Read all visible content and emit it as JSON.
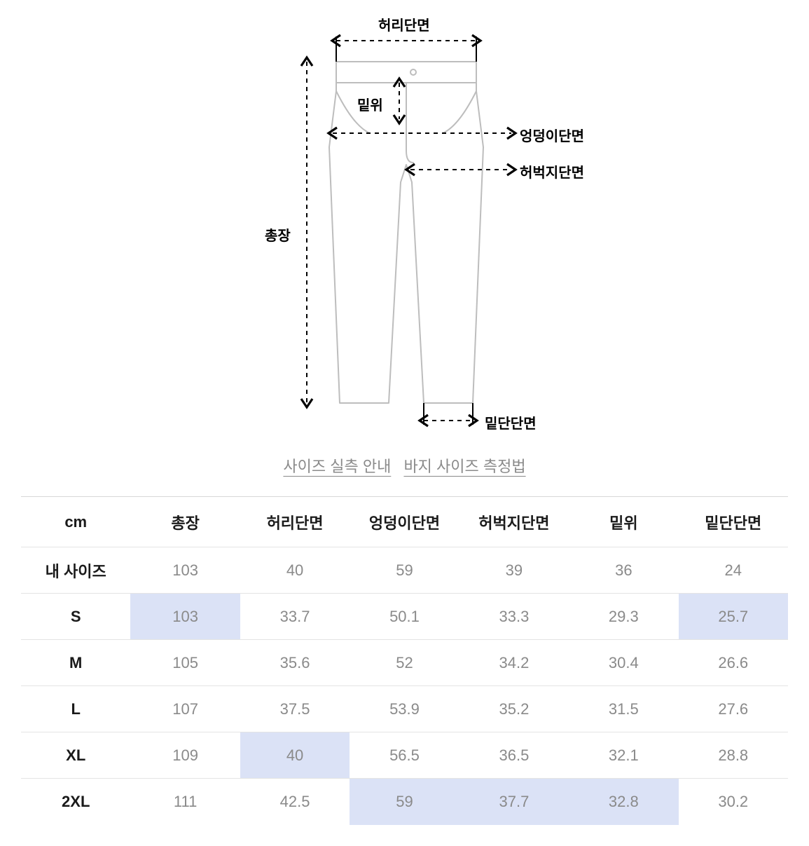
{
  "diagram": {
    "labels": {
      "waist": "허리단면",
      "rise": "밑위",
      "hip": "엉덩이단면",
      "thigh": "허벅지단면",
      "total": "총장",
      "hem": "밑단단면"
    },
    "stroke": "#000000",
    "pants_stroke": "#bdbdbd",
    "pants_stroke_width": 2,
    "label_fontsize_pt": 15,
    "label_fontweight": 700
  },
  "links": {
    "guide": "사이즈 실측 안내",
    "howto": "바지 사이즈 측정법",
    "color": "#8a8a8a",
    "fontsize_pt": 16
  },
  "table": {
    "unit_header": "cm",
    "columns": [
      "총장",
      "허리단면",
      "엉덩이단면",
      "허벅지단면",
      "밑위",
      "밑단단면"
    ],
    "rows": [
      {
        "label": "내 사이즈",
        "values": [
          "103",
          "40",
          "59",
          "39",
          "36",
          "24"
        ],
        "hl": [
          false,
          false,
          false,
          false,
          false,
          false
        ]
      },
      {
        "label": "S",
        "values": [
          "103",
          "33.7",
          "50.1",
          "33.3",
          "29.3",
          "25.7"
        ],
        "hl": [
          true,
          false,
          false,
          false,
          false,
          true
        ]
      },
      {
        "label": "M",
        "values": [
          "105",
          "35.6",
          "52",
          "34.2",
          "30.4",
          "26.6"
        ],
        "hl": [
          false,
          false,
          false,
          false,
          false,
          false
        ]
      },
      {
        "label": "L",
        "values": [
          "107",
          "37.5",
          "53.9",
          "35.2",
          "31.5",
          "27.6"
        ],
        "hl": [
          false,
          false,
          false,
          false,
          false,
          false
        ]
      },
      {
        "label": "XL",
        "values": [
          "109",
          "40",
          "56.5",
          "36.5",
          "32.1",
          "28.8"
        ],
        "hl": [
          false,
          true,
          false,
          false,
          false,
          false
        ]
      },
      {
        "label": "2XL",
        "values": [
          "111",
          "42.5",
          "59",
          "37.7",
          "32.8",
          "30.2"
        ],
        "hl": [
          false,
          false,
          true,
          true,
          true,
          false
        ]
      }
    ],
    "highlight_bg": "#dbe2f6",
    "border_color": "#e4e4e4",
    "header_color": "#1a1a1a",
    "value_color": "#8a8a8a",
    "header_fontsize_pt": 16,
    "cell_fontsize_pt": 16
  }
}
